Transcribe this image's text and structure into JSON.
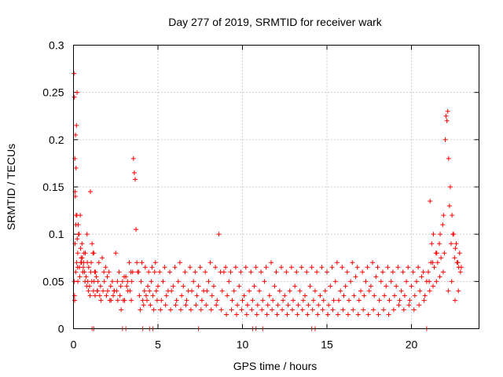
{
  "chart_data": {
    "type": "scatter",
    "title": "Day 277 of 2019, SRMTID for receiver wark",
    "xlabel": "GPS time / hours",
    "ylabel": "SRMTID / TECUs",
    "xlim": [
      0,
      24
    ],
    "ylim": [
      0,
      0.3
    ],
    "xticks": [
      0,
      5,
      10,
      15,
      20
    ],
    "yticks": [
      0,
      0.05,
      0.1,
      0.15,
      0.2,
      0.25,
      0.3
    ],
    "ytick_labels": [
      "0",
      "0.05",
      "0.1",
      "0.15",
      "0.2",
      "0.25",
      "0.3"
    ],
    "grid": true,
    "marker": "+",
    "series": [
      {
        "name": "SRMTID",
        "color": "#ff0000",
        "x": [
          0.03,
          0.05,
          0.08,
          0.1,
          0.12,
          0.15,
          0.18,
          0.2,
          0.22,
          0.25,
          0.3,
          0.35,
          0.4,
          0.45,
          0.5,
          0.55,
          0.6,
          0.7,
          0.8,
          0.9,
          1.0,
          1.1,
          1.2,
          1.3,
          1.5,
          1.7,
          1.9,
          2.1,
          2.3,
          2.5,
          2.7,
          2.9,
          3.1,
          3.3,
          3.5,
          3.55,
          3.6,
          3.65,
          3.7,
          3.75,
          3.8,
          4.0,
          4.2,
          4.4,
          4.6,
          4.8,
          5.0,
          5.3,
          5.6,
          5.9,
          6.2,
          6.5,
          6.8,
          7.1,
          7.4,
          7.7,
          8.0,
          8.3,
          8.6,
          8.9,
          9.2,
          9.5,
          9.8,
          10.1,
          10.4,
          10.7,
          11.0,
          11.3,
          11.6,
          11.9,
          12.2,
          12.5,
          12.8,
          13.1,
          13.4,
          13.7,
          14.0,
          14.3,
          14.6,
          14.9,
          15.2,
          15.5,
          15.8,
          16.1,
          16.4,
          16.7,
          17.0,
          17.3,
          17.6,
          17.9,
          18.2,
          18.5,
          18.8,
          19.1,
          19.4,
          19.7,
          20.0,
          20.3,
          20.6,
          20.9,
          21.0,
          21.1,
          21.2,
          21.3,
          21.5,
          21.7,
          21.9,
          22.0,
          22.05,
          22.1,
          22.15,
          22.2,
          22.3,
          22.4,
          22.5,
          22.6,
          22.7,
          22.8,
          22.9,
          0.06,
          0.11,
          0.16,
          0.21,
          0.28,
          0.33,
          0.42,
          0.52,
          0.65,
          0.75,
          0.85,
          0.95,
          1.05,
          1.15,
          1.25,
          1.35,
          1.45,
          1.6,
          1.8,
          2.0,
          2.2,
          2.4,
          2.6,
          2.8,
          3.0,
          3.2,
          3.4,
          3.9,
          4.1,
          4.3,
          4.5,
          4.7,
          4.9,
          5.2,
          5.5,
          5.8,
          6.1,
          6.4,
          6.7,
          7.0,
          7.3,
          7.6,
          7.9,
          8.2,
          8.5,
          8.8,
          9.1,
          9.4,
          9.7,
          10.0,
          10.3,
          10.6,
          10.9,
          11.2,
          11.5,
          11.8,
          12.1,
          12.4,
          12.7,
          13.0,
          13.3,
          13.6,
          13.9,
          14.2,
          14.5,
          14.8,
          15.1,
          15.4,
          15.7,
          16.0,
          16.3,
          16.6,
          16.9,
          17.2,
          17.5,
          17.8,
          18.1,
          18.4,
          18.7,
          19.0,
          19.3,
          19.6,
          19.9,
          20.2,
          20.5,
          20.8,
          21.05,
          21.25,
          21.45,
          21.65,
          21.85,
          22.25,
          22.45,
          22.65,
          22.85,
          0.04,
          0.09,
          0.14,
          0.19,
          0.24,
          0.37,
          0.48,
          0.58,
          0.68,
          0.78,
          0.88,
          0.98,
          1.08,
          1.18,
          1.28,
          1.4,
          1.55,
          1.75,
          1.95,
          2.15,
          2.35,
          2.55,
          2.75,
          2.95,
          3.15,
          3.35,
          3.45,
          3.85,
          4.05,
          4.25,
          4.45,
          4.65,
          4.85,
          5.1,
          5.4,
          5.7,
          6.0,
          6.3,
          6.6,
          6.9,
          7.2,
          7.5,
          7.8,
          8.1,
          8.4,
          8.7,
          9.0,
          9.3,
          9.6,
          9.9,
          10.2,
          10.5,
          10.8,
          11.1,
          11.4,
          11.7,
          12.0,
          12.3,
          12.6,
          12.9,
          13.2,
          13.5,
          13.8,
          14.1,
          14.4,
          14.7,
          15.0,
          15.3,
          15.6,
          15.9,
          16.2,
          16.5,
          16.8,
          17.1,
          17.4,
          17.7,
          18.0,
          18.3,
          18.6,
          18.9,
          19.2,
          19.5,
          19.8,
          20.1,
          20.4,
          20.7,
          21.15,
          21.35,
          21.55,
          21.75,
          21.95,
          22.35,
          22.55,
          22.75,
          22.95,
          0.07,
          0.13,
          0.26,
          0.44,
          0.62,
          0.82,
          1.02,
          1.22,
          1.42,
          1.62,
          1.82,
          2.02,
          2.22,
          2.42,
          2.62,
          2.82,
          3.02,
          3.22,
          3.42,
          3.95,
          4.15,
          4.35,
          4.55,
          4.75,
          4.95,
          5.15,
          5.45,
          5.75,
          6.05,
          6.35,
          6.65,
          6.95,
          7.25,
          7.55,
          7.85,
          8.15,
          8.45,
          8.75,
          9.05,
          9.35,
          9.65,
          9.95,
          10.25,
          10.55,
          10.85,
          11.15,
          11.45,
          11.75,
          12.05,
          12.35,
          12.65,
          12.95,
          13.25,
          13.55,
          13.85,
          14.15,
          14.45,
          14.75,
          15.05,
          15.35,
          15.65,
          15.95,
          16.25,
          16.55,
          16.85,
          17.15,
          17.45,
          17.75,
          18.05,
          18.35,
          18.65,
          18.95,
          19.25,
          19.55,
          19.85,
          20.15,
          20.45,
          20.75,
          21.08,
          21.28,
          21.48,
          21.68,
          21.88,
          22.18,
          22.38,
          22.58,
          22.78,
          1.1,
          1.2,
          2.9,
          3.1,
          4.1,
          4.5,
          4.7,
          7.4,
          10.6,
          10.8,
          11.2,
          14.1,
          14.3,
          20.9
        ],
        "y": [
          0.27,
          0.245,
          0.18,
          0.145,
          0.205,
          0.17,
          0.215,
          0.12,
          0.095,
          0.08,
          0.1,
          0.065,
          0.12,
          0.075,
          0.09,
          0.06,
          0.07,
          0.08,
          0.1,
          0.065,
          0.145,
          0.09,
          0.08,
          0.06,
          0.07,
          0.075,
          0.065,
          0.06,
          0.05,
          0.08,
          0.06,
          0.05,
          0.055,
          0.07,
          0.06,
          0.18,
          0.165,
          0.158,
          0.105,
          0.07,
          0.06,
          0.05,
          0.04,
          0.045,
          0.05,
          0.06,
          0.045,
          0.05,
          0.04,
          0.045,
          0.05,
          0.045,
          0.04,
          0.05,
          0.045,
          0.04,
          0.05,
          0.045,
          0.1,
          0.06,
          0.05,
          0.04,
          0.045,
          0.035,
          0.04,
          0.045,
          0.04,
          0.05,
          0.035,
          0.045,
          0.04,
          0.035,
          0.04,
          0.045,
          0.04,
          0.035,
          0.045,
          0.04,
          0.035,
          0.04,
          0.045,
          0.05,
          0.04,
          0.045,
          0.05,
          0.055,
          0.04,
          0.05,
          0.045,
          0.055,
          0.05,
          0.045,
          0.05,
          0.045,
          0.04,
          0.05,
          0.045,
          0.05,
          0.055,
          0.05,
          0.06,
          0.135,
          0.09,
          0.1,
          0.08,
          0.1,
          0.12,
          0.2,
          0.225,
          0.22,
          0.23,
          0.18,
          0.15,
          0.12,
          0.1,
          0.085,
          0.07,
          0.065,
          0.06,
          0.035,
          0.14,
          0.12,
          0.25,
          0.11,
          0.1,
          0.085,
          0.075,
          0.06,
          0.055,
          0.05,
          0.045,
          0.07,
          0.08,
          0.06,
          0.055,
          0.05,
          0.045,
          0.06,
          0.055,
          0.045,
          0.04,
          0.05,
          0.045,
          0.055,
          0.05,
          0.06,
          0.035,
          0.03,
          0.035,
          0.04,
          0.035,
          0.04,
          0.03,
          0.035,
          0.04,
          0.03,
          0.035,
          0.03,
          0.04,
          0.035,
          0.03,
          0.04,
          0.035,
          0.03,
          0.04,
          0.035,
          0.03,
          0.025,
          0.03,
          0.025,
          0.03,
          0.025,
          0.03,
          0.025,
          0.03,
          0.025,
          0.03,
          0.025,
          0.03,
          0.025,
          0.03,
          0.025,
          0.03,
          0.025,
          0.03,
          0.025,
          0.03,
          0.03,
          0.035,
          0.03,
          0.035,
          0.03,
          0.035,
          0.04,
          0.035,
          0.03,
          0.035,
          0.03,
          0.035,
          0.03,
          0.035,
          0.03,
          0.035,
          0.04,
          0.035,
          0.05,
          0.07,
          0.08,
          0.09,
          0.11,
          0.13,
          0.1,
          0.09,
          0.08,
          0.05,
          0.09,
          0.11,
          0.07,
          0.065,
          0.055,
          0.07,
          0.065,
          0.05,
          0.045,
          0.04,
          0.035,
          0.05,
          0.04,
          0.035,
          0.04,
          0.035,
          0.04,
          0.035,
          0.03,
          0.035,
          0.04,
          0.035,
          0.03,
          0.045,
          0.04,
          0.05,
          0.06,
          0.07,
          0.065,
          0.06,
          0.065,
          0.07,
          0.06,
          0.065,
          0.06,
          0.065,
          0.07,
          0.06,
          0.065,
          0.06,
          0.065,
          0.06,
          0.07,
          0.065,
          0.06,
          0.065,
          0.06,
          0.065,
          0.06,
          0.065,
          0.06,
          0.065,
          0.06,
          0.065,
          0.07,
          0.06,
          0.065,
          0.06,
          0.065,
          0.06,
          0.065,
          0.06,
          0.065,
          0.06,
          0.065,
          0.06,
          0.065,
          0.07,
          0.065,
          0.06,
          0.07,
          0.065,
          0.06,
          0.065,
          0.07,
          0.065,
          0.06,
          0.065,
          0.06,
          0.065,
          0.06,
          0.065,
          0.06,
          0.065,
          0.06,
          0.07,
          0.065,
          0.07,
          0.075,
          0.08,
          0.09,
          0.075,
          0.07,
          0.065,
          0.03,
          0.06,
          0.05,
          0.07,
          0.08,
          0.07,
          0.06,
          0.05,
          0.04,
          0.03,
          0.05,
          0.04,
          0.03,
          0.04,
          0.03,
          0.02,
          0.03,
          0.04,
          0.03,
          0.02,
          0.025,
          0.03,
          0.025,
          0.02,
          0.03,
          0.02,
          0.025,
          0.02,
          0.025,
          0.02,
          0.025,
          0.02,
          0.025,
          0.02,
          0.025,
          0.02,
          0.025,
          0.02,
          0.015,
          0.02,
          0.015,
          0.02,
          0.015,
          0.02,
          0.015,
          0.02,
          0.015,
          0.02,
          0.015,
          0.02,
          0.015,
          0.02,
          0.015,
          0.02,
          0.015,
          0.02,
          0.015,
          0.02,
          0.015,
          0.02,
          0.015,
          0.02,
          0.015,
          0.02,
          0.015,
          0.02,
          0.015,
          0.02,
          0.015,
          0.02,
          0.015,
          0.02,
          0.025,
          0.02,
          0.025,
          0.02,
          0.025,
          0.03,
          0.04,
          0.045,
          0.05,
          0.055,
          0.06,
          0.04,
          0.05,
          0.03,
          0.04,
          0,
          0,
          0,
          0,
          0,
          0,
          0,
          0,
          0,
          0,
          0,
          0,
          0,
          0
        ]
      }
    ]
  }
}
